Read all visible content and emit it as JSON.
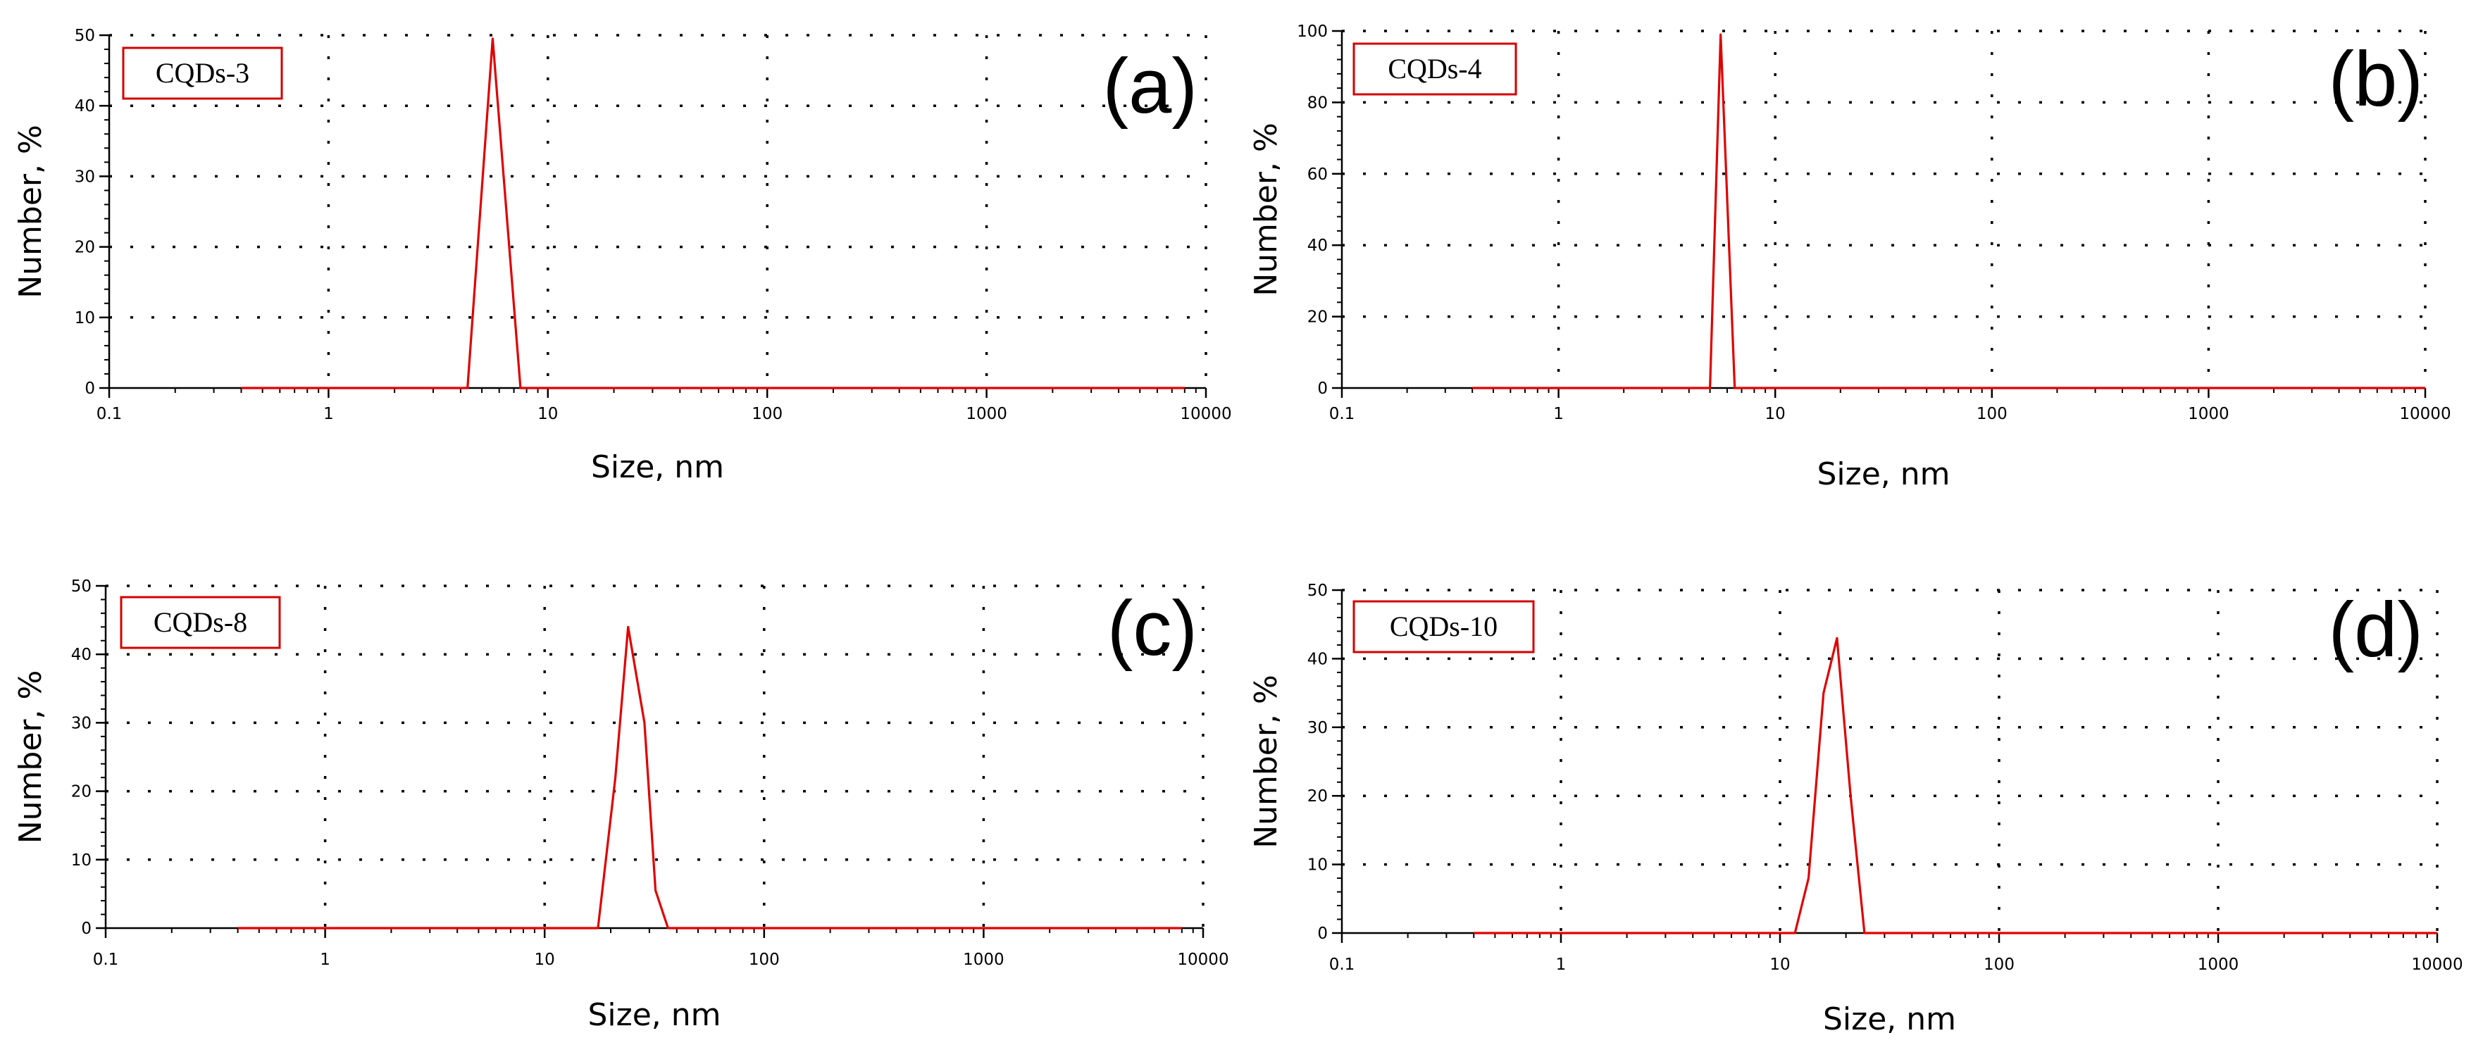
{
  "chart_data": [
    {
      "type": "line",
      "panel": "(a)",
      "legend": "CQDs-3",
      "xlabel": "Size, nm",
      "ylabel": "Number, %",
      "xscale": "log",
      "xlim": [
        0.1,
        10000
      ],
      "ylim": [
        0,
        50
      ],
      "xticks": [
        "0.1",
        "1",
        "10",
        "100",
        "1000",
        "10000"
      ],
      "yticks": [
        "0",
        "10",
        "20",
        "30",
        "40",
        "50"
      ],
      "color": "#e00000",
      "series": [
        {
          "name": "CQDs-3",
          "x": [
            0.4,
            4.3,
            5.6,
            7.5,
            8000
          ],
          "y": [
            0,
            0,
            49.5,
            0,
            0
          ]
        }
      ]
    },
    {
      "type": "line",
      "panel": "(b)",
      "legend": "CQDs-4",
      "xlabel": "Size, nm",
      "ylabel": "Number, %",
      "xscale": "log",
      "xlim": [
        0.1,
        10000
      ],
      "ylim": [
        0,
        100
      ],
      "xticks": [
        "0.1",
        "1",
        "10",
        "100",
        "1000",
        "10000"
      ],
      "yticks": [
        "0",
        "20",
        "40",
        "60",
        "80",
        "100"
      ],
      "color": "#e00000",
      "series": [
        {
          "name": "CQDs-4",
          "x": [
            0.4,
            5.0,
            5.6,
            6.5,
            10000
          ],
          "y": [
            0,
            0,
            99,
            0,
            0
          ]
        }
      ]
    },
    {
      "type": "line",
      "panel": "(c)",
      "legend": "CQDs-8",
      "xlabel": "Size, nm",
      "ylabel": "Number, %",
      "xscale": "log",
      "xlim": [
        0.1,
        10000
      ],
      "ylim": [
        0,
        50
      ],
      "xticks": [
        "0.1",
        "1",
        "10",
        "100",
        "1000",
        "10000"
      ],
      "yticks": [
        "0",
        "10",
        "20",
        "30",
        "40",
        "50"
      ],
      "color": "#e00000",
      "series": [
        {
          "name": "CQDs-8",
          "x": [
            0.4,
            17.5,
            21,
            24,
            28.5,
            32,
            36.5,
            8000
          ],
          "y": [
            0,
            0,
            22,
            44,
            30,
            5.5,
            0,
            0
          ]
        }
      ]
    },
    {
      "type": "line",
      "panel": "(d)",
      "legend": "CQDs-10",
      "xlabel": "Size, nm",
      "ylabel": "Number, %",
      "xscale": "log",
      "xlim": [
        0.1,
        10000
      ],
      "ylim": [
        0,
        50
      ],
      "xticks": [
        "0.1",
        "1",
        "10",
        "100",
        "1000",
        "10000"
      ],
      "yticks": [
        "0",
        "10",
        "20",
        "30",
        "40",
        "50"
      ],
      "color": "#e00000",
      "series": [
        {
          "name": "CQDs-10",
          "x": [
            0.4,
            11.7,
            13.5,
            15.8,
            18.2,
            21,
            24.3,
            10000
          ],
          "y": [
            0,
            0,
            8,
            35,
            43,
            20,
            0,
            0
          ]
        }
      ]
    }
  ]
}
